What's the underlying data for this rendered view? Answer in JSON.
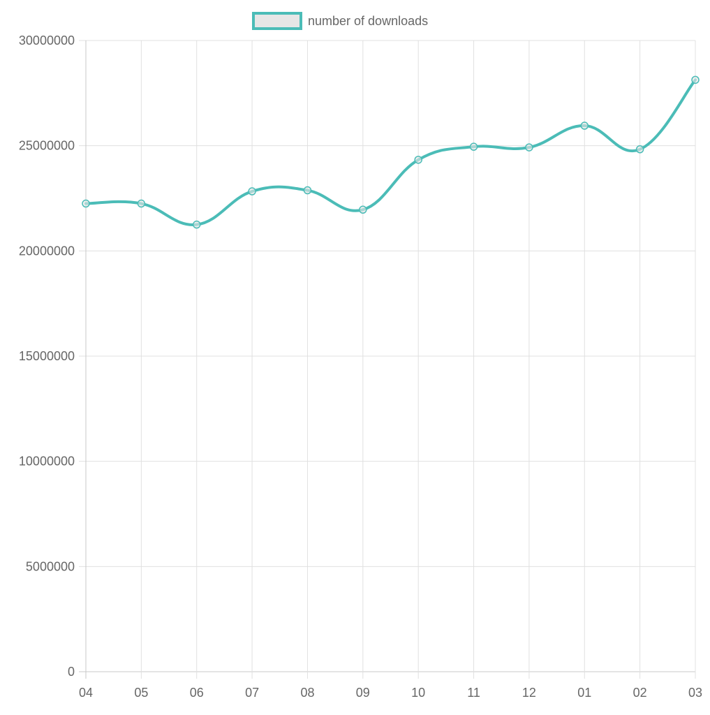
{
  "chart_data": {
    "type": "line",
    "categories": [
      "04",
      "05",
      "06",
      "07",
      "08",
      "09",
      "10",
      "11",
      "12",
      "01",
      "02",
      "03"
    ],
    "series": [
      {
        "name": "number of downloads",
        "values": [
          22250000,
          22250000,
          21250000,
          22830000,
          22880000,
          21960000,
          24330000,
          24950000,
          24920000,
          25950000,
          24830000,
          28130000
        ]
      }
    ],
    "yticks": [
      "0",
      "5000000",
      "10000000",
      "15000000",
      "20000000",
      "25000000",
      "30000000"
    ],
    "ylim": [
      0,
      30000000
    ],
    "grid": true,
    "legend": "top-center",
    "line_color": "#4bbcb7",
    "legend_fill": "#e6e6e6",
    "grid_color": "#e0e0e0",
    "axis_color": "#c8c8c8",
    "text_color": "#666666"
  }
}
